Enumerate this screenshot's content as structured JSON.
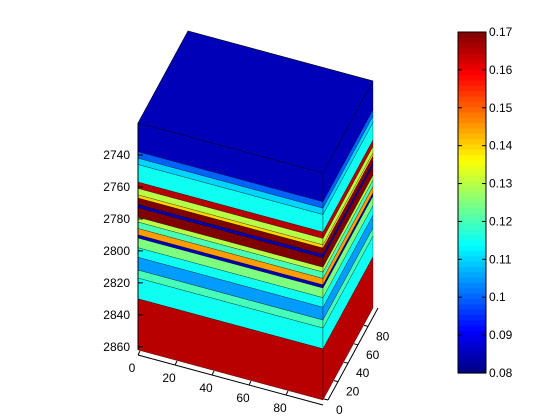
{
  "chart_data": {
    "type": "3d-layer-block",
    "title": "",
    "depth_axis": {
      "ticks": [
        2740,
        2760,
        2780,
        2800,
        2820,
        2840,
        2860
      ],
      "range": [
        2720,
        2862
      ]
    },
    "x_axis": {
      "ticks": [
        0,
        20,
        40,
        60,
        80
      ],
      "range": [
        0,
        100
      ]
    },
    "y_axis": {
      "ticks": [
        0,
        20,
        40,
        60,
        80
      ],
      "range": [
        0,
        100
      ]
    },
    "colorbar": {
      "colormap": "jet",
      "range": [
        0.08,
        0.17
      ],
      "ticks": [
        "0.08",
        "0.09",
        "0.1",
        "0.11",
        "0.12",
        "0.13",
        "0.14",
        "0.15",
        "0.16",
        "0.17"
      ]
    },
    "top_surface": {
      "depth": 2720,
      "value": 0.085
    },
    "layers": [
      {
        "top": 2720,
        "bottom": 2738,
        "value": 0.085
      },
      {
        "top": 2738,
        "bottom": 2742,
        "value": 0.1
      },
      {
        "top": 2742,
        "bottom": 2746,
        "value": 0.11
      },
      {
        "top": 2746,
        "bottom": 2757,
        "value": 0.115
      },
      {
        "top": 2757,
        "bottom": 2761,
        "value": 0.165
      },
      {
        "top": 2761,
        "bottom": 2765,
        "value": 0.13
      },
      {
        "top": 2765,
        "bottom": 2767,
        "value": 0.14
      },
      {
        "top": 2767,
        "bottom": 2771,
        "value": 0.17
      },
      {
        "top": 2771,
        "bottom": 2773,
        "value": 0.085
      },
      {
        "top": 2773,
        "bottom": 2779,
        "value": 0.17
      },
      {
        "top": 2779,
        "bottom": 2782,
        "value": 0.13
      },
      {
        "top": 2782,
        "bottom": 2786,
        "value": 0.12
      },
      {
        "top": 2786,
        "bottom": 2790,
        "value": 0.145
      },
      {
        "top": 2790,
        "bottom": 2792,
        "value": 0.085
      },
      {
        "top": 2792,
        "bottom": 2798,
        "value": 0.125
      },
      {
        "top": 2798,
        "bottom": 2804,
        "value": 0.115
      },
      {
        "top": 2804,
        "bottom": 2812,
        "value": 0.105
      },
      {
        "top": 2812,
        "bottom": 2817,
        "value": 0.12
      },
      {
        "top": 2817,
        "bottom": 2830,
        "value": 0.115
      },
      {
        "top": 2830,
        "bottom": 2862,
        "value": 0.165
      }
    ]
  }
}
